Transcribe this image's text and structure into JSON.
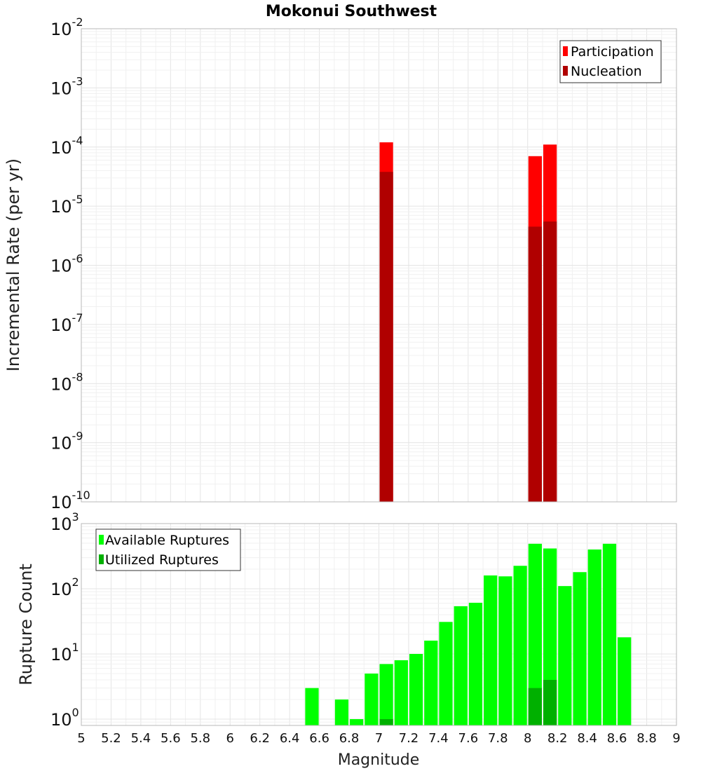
{
  "chart_data": [
    {
      "type": "bar",
      "title": "Mokonui Southwest",
      "xlabel": "",
      "ylabel": "Incremental Rate (per yr)",
      "y_scale": "log",
      "ylim": [
        1e-10,
        0.01
      ],
      "y_ticks": [
        {
          "base": "10",
          "exp": "-10"
        },
        {
          "base": "10",
          "exp": "-9"
        },
        {
          "base": "10",
          "exp": "-8"
        },
        {
          "base": "10",
          "exp": "-7"
        },
        {
          "base": "10",
          "exp": "-6"
        },
        {
          "base": "10",
          "exp": "-5"
        },
        {
          "base": "10",
          "exp": "-4"
        },
        {
          "base": "10",
          "exp": "-3"
        },
        {
          "base": "10",
          "exp": "-2"
        }
      ],
      "bar_width": 0.1,
      "grid": true,
      "legend_position": "top-right",
      "series": [
        {
          "name": "Participation",
          "color": "#ff0000",
          "points": [
            {
              "x": 7.05,
              "y": 0.00012
            },
            {
              "x": 8.05,
              "y": 7e-05
            },
            {
              "x": 8.15,
              "y": 0.00011
            }
          ]
        },
        {
          "name": "Nucleation",
          "color": "#b00000",
          "points": [
            {
              "x": 7.05,
              "y": 3.8e-05
            },
            {
              "x": 8.05,
              "y": 4.5e-06
            },
            {
              "x": 8.15,
              "y": 5.5e-06
            }
          ]
        }
      ]
    },
    {
      "type": "bar",
      "title": "",
      "xlabel": "Magnitude",
      "ylabel": "Rupture Count",
      "y_scale": "log",
      "ylim": [
        0.8,
        1000
      ],
      "y_ticks": [
        {
          "base": "10",
          "exp": "0"
        },
        {
          "base": "10",
          "exp": "1"
        },
        {
          "base": "10",
          "exp": "2"
        },
        {
          "base": "10",
          "exp": "3"
        }
      ],
      "xlim": [
        5,
        9
      ],
      "x_ticks": [
        "5",
        "5.2",
        "5.4",
        "5.6",
        "5.8",
        "6",
        "6.2",
        "6.4",
        "6.6",
        "6.8",
        "7",
        "7.2",
        "7.4",
        "7.6",
        "7.8",
        "8",
        "8.2",
        "8.4",
        "8.6",
        "8.8",
        "9"
      ],
      "bar_width": 0.1,
      "grid": true,
      "legend_position": "top-left",
      "series": [
        {
          "name": "Available Ruptures",
          "color": "#00ff00",
          "points": [
            {
              "x": 6.55,
              "y": 3
            },
            {
              "x": 6.75,
              "y": 2
            },
            {
              "x": 6.85,
              "y": 1
            },
            {
              "x": 6.95,
              "y": 5
            },
            {
              "x": 7.05,
              "y": 7
            },
            {
              "x": 7.15,
              "y": 8
            },
            {
              "x": 7.25,
              "y": 10
            },
            {
              "x": 7.35,
              "y": 16
            },
            {
              "x": 7.45,
              "y": 31
            },
            {
              "x": 7.55,
              "y": 54
            },
            {
              "x": 7.65,
              "y": 61
            },
            {
              "x": 7.75,
              "y": 160
            },
            {
              "x": 7.85,
              "y": 155
            },
            {
              "x": 7.95,
              "y": 225
            },
            {
              "x": 8.05,
              "y": 490
            },
            {
              "x": 8.15,
              "y": 415
            },
            {
              "x": 8.25,
              "y": 110
            },
            {
              "x": 8.35,
              "y": 180
            },
            {
              "x": 8.45,
              "y": 400
            },
            {
              "x": 8.55,
              "y": 490
            },
            {
              "x": 8.65,
              "y": 18
            }
          ]
        },
        {
          "name": "Utilized Ruptures",
          "color": "#00b000",
          "points": [
            {
              "x": 7.05,
              "y": 1
            },
            {
              "x": 8.05,
              "y": 3
            },
            {
              "x": 8.15,
              "y": 4
            }
          ]
        }
      ]
    }
  ]
}
